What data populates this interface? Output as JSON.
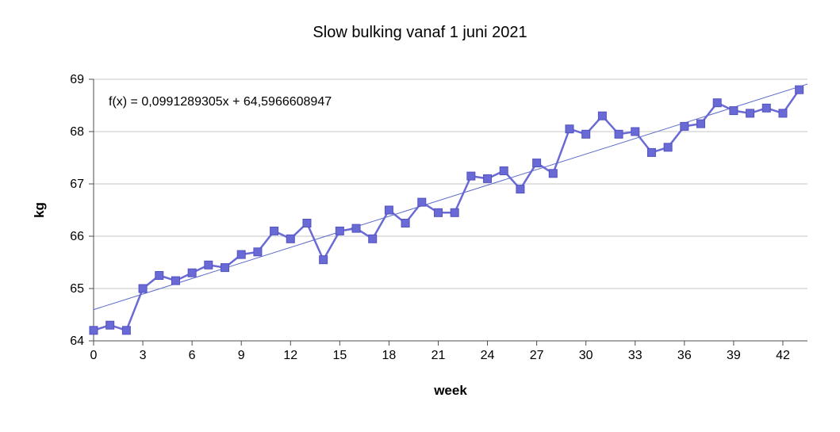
{
  "chart_data": {
    "type": "line",
    "title": "Slow bulking vanaf 1 juni 2021",
    "xlabel": "week",
    "ylabel": "kg",
    "equation_label": "f(x) = 0,0991289305x + 64,5966608947",
    "x": [
      0,
      1,
      2,
      3,
      4,
      5,
      6,
      7,
      8,
      9,
      10,
      11,
      12,
      13,
      14,
      15,
      16,
      17,
      18,
      19,
      20,
      21,
      22,
      23,
      24,
      25,
      26,
      27,
      28,
      29,
      30,
      31,
      32,
      33,
      34,
      35,
      36,
      37,
      38,
      39,
      40,
      41,
      42,
      43
    ],
    "y": [
      64.2,
      64.3,
      64.2,
      65.0,
      65.25,
      65.15,
      65.3,
      65.45,
      65.4,
      65.65,
      65.7,
      66.1,
      65.95,
      66.25,
      65.55,
      66.1,
      66.15,
      65.95,
      66.5,
      66.25,
      66.65,
      66.45,
      66.45,
      67.15,
      67.1,
      67.25,
      66.9,
      67.4,
      67.2,
      68.05,
      67.95,
      68.3,
      67.95,
      68.0,
      67.6,
      67.7,
      68.1,
      68.15,
      68.55,
      68.4,
      68.35,
      68.45,
      68.35,
      68.8
    ],
    "xlim": [
      0,
      43.5
    ],
    "ylim": [
      64,
      69
    ],
    "x_ticks": [
      0,
      3,
      6,
      9,
      12,
      15,
      18,
      21,
      24,
      27,
      30,
      33,
      36,
      39,
      42
    ],
    "y_ticks": [
      64,
      65,
      66,
      67,
      68,
      69
    ],
    "grid": "horizontal",
    "legend": "none",
    "trendline": {
      "slope": 0.0991289305,
      "intercept": 64.5966608947
    },
    "colors": {
      "series": "#6a6ad6",
      "marker_border": "#5353c0",
      "trend": "#5a6ac8",
      "grid": "#c6c6c6",
      "axis": "#4d4d4d",
      "text": "#000000"
    }
  }
}
